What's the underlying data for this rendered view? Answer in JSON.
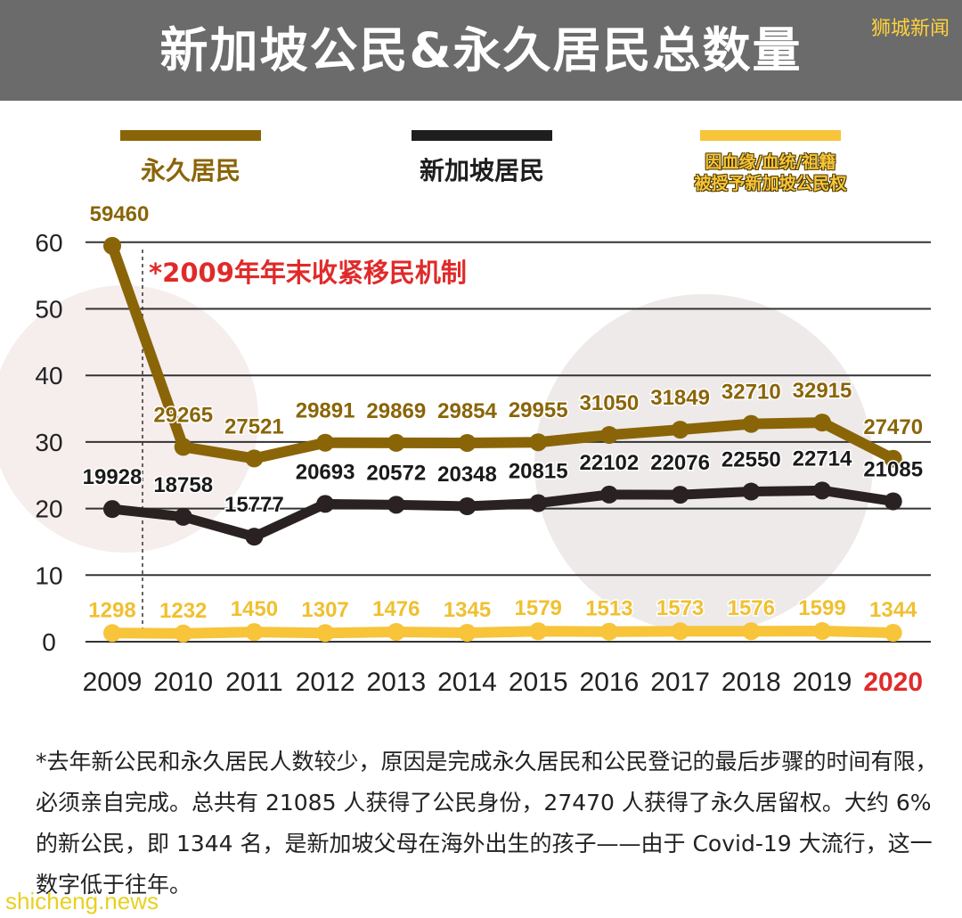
{
  "header": {
    "title": "新加坡公民&永久居民总数量",
    "brand": "狮城新闻"
  },
  "colors": {
    "pr": "#8a6508",
    "citizen": "#2a2222",
    "descent": "#f7c43a",
    "annotation": "#e02a2a",
    "grid": "#333333"
  },
  "chart_data": {
    "type": "line",
    "title": "新加坡公民&永久居民总数量",
    "xlabel": "",
    "ylabel": "",
    "x": [
      "2009",
      "2010",
      "2011",
      "2012",
      "2013",
      "2014",
      "2015",
      "2016",
      "2017",
      "2018",
      "2019",
      "2020"
    ],
    "yticks": [
      "0",
      "10",
      "20",
      "30",
      "40",
      "50",
      "60"
    ],
    "ylim": [
      0,
      60
    ],
    "y_unit": "thousands",
    "grid": true,
    "legend_position": "top",
    "annotation": "*2009年年末收紧移民机制",
    "series": [
      {
        "name": "永久居民",
        "values": [
          59460,
          29265,
          27521,
          29891,
          29869,
          29854,
          29955,
          31050,
          31849,
          32710,
          32915,
          27470
        ]
      },
      {
        "name": "新加坡居民",
        "values": [
          19928,
          18758,
          15777,
          20693,
          20572,
          20348,
          20815,
          22102,
          22076,
          22550,
          22714,
          21085
        ]
      },
      {
        "name": "因血缘/血统/祖籍 被授予新加坡公民权",
        "name_line1": "因血缘/血统/祖籍",
        "name_line2": "被授予新加坡公民权",
        "values": [
          1298,
          1232,
          1450,
          1307,
          1476,
          1345,
          1579,
          1513,
          1573,
          1576,
          1599,
          1344
        ]
      }
    ]
  },
  "note": "*去年新公民和永久居民人数较少，原因是完成永久居民和公民登记的最后步骤的时间有限，必须亲自完成。总共有 21085 人获得了公民身份，27470 人获得了永久居留权。大约 6% 的新公民，即 1344 名，是新加坡父母在海外出生的孩子——由于 Covid-19 大流行，这一数字低于往年。",
  "footer": {
    "site": "shicheng.news"
  }
}
